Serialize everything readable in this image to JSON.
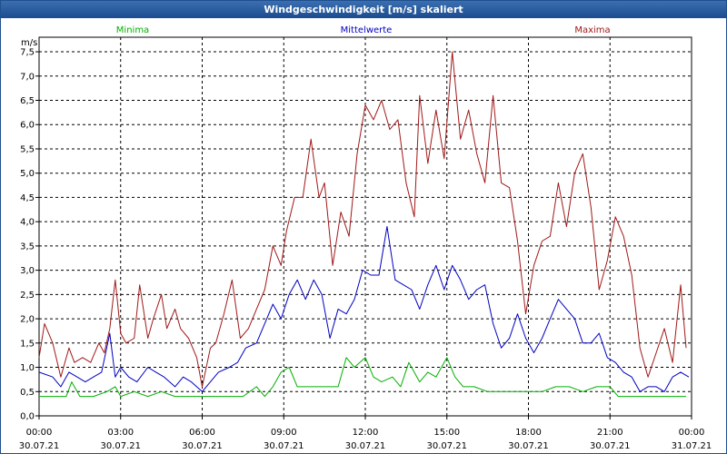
{
  "chart_data": {
    "type": "line",
    "title": "Windgeschwindigkeit [m/s] skaliert",
    "ylabel": "m/s",
    "ylim": [
      0,
      7.8
    ],
    "yticks": [
      "0,0",
      "0,5",
      "1,0",
      "1,5",
      "2,0",
      "2,5",
      "3,0",
      "3,5",
      "4,0",
      "4,5",
      "5,0",
      "5,5",
      "6,0",
      "6,5",
      "7,0",
      "7,5"
    ],
    "xlim": [
      0,
      24
    ],
    "xticks": [
      {
        "time": "00:00",
        "date": "30.07.21"
      },
      {
        "time": "03:00",
        "date": "30.07.21"
      },
      {
        "time": "06:00",
        "date": "30.07.21"
      },
      {
        "time": "09:00",
        "date": "30.07.21"
      },
      {
        "time": "12:00",
        "date": "30.07.21"
      },
      {
        "time": "15:00",
        "date": "30.07.21"
      },
      {
        "time": "18:00",
        "date": "30.07.21"
      },
      {
        "time": "21:00",
        "date": "30.07.21"
      },
      {
        "time": "00:00",
        "date": "31.07.21"
      }
    ],
    "colors": {
      "minima": "#00b000",
      "mittel": "#0000c0",
      "maxima": "#a01818",
      "grid": "#000000",
      "axis": "#000000"
    },
    "series": [
      {
        "name": "Minima",
        "key": "minima",
        "x": [
          0,
          0.5,
          1,
          1.2,
          1.5,
          2,
          2.5,
          2.8,
          3,
          3.5,
          4,
          4.5,
          5,
          5.5,
          6,
          6.5,
          7,
          7.5,
          8,
          8.3,
          8.6,
          8.9,
          9.2,
          9.5,
          10,
          10.5,
          11,
          11.3,
          11.6,
          12,
          12.3,
          12.6,
          13,
          13.3,
          13.6,
          14,
          14.3,
          14.6,
          15,
          15.3,
          15.6,
          16,
          16.5,
          17,
          17.5,
          18,
          18.5,
          19,
          19.5,
          20,
          20.5,
          21,
          21.3,
          21.6,
          22,
          22.5,
          23,
          23.5,
          23.8
        ],
        "y": [
          0.4,
          0.4,
          0.4,
          0.7,
          0.4,
          0.4,
          0.5,
          0.6,
          0.4,
          0.5,
          0.4,
          0.5,
          0.4,
          0.4,
          0.4,
          0.4,
          0.4,
          0.4,
          0.6,
          0.4,
          0.6,
          0.9,
          1.0,
          0.6,
          0.6,
          0.6,
          0.6,
          1.2,
          1.0,
          1.2,
          0.8,
          0.7,
          0.8,
          0.6,
          1.1,
          0.7,
          0.9,
          0.8,
          1.2,
          0.8,
          0.6,
          0.6,
          0.5,
          0.5,
          0.5,
          0.5,
          0.5,
          0.6,
          0.6,
          0.5,
          0.6,
          0.6,
          0.4,
          0.4,
          0.4,
          0.4,
          0.4,
          0.4,
          0.4
        ]
      },
      {
        "name": "Mittelwerte",
        "key": "mittel",
        "x": [
          0,
          0.5,
          0.8,
          1.1,
          1.4,
          1.7,
          2,
          2.3,
          2.6,
          2.8,
          3,
          3.3,
          3.6,
          4,
          4.3,
          4.6,
          5,
          5.3,
          5.6,
          6,
          6.3,
          6.6,
          7,
          7.3,
          7.6,
          8,
          8.3,
          8.6,
          8.9,
          9.2,
          9.5,
          9.8,
          10.1,
          10.4,
          10.7,
          11,
          11.3,
          11.6,
          11.9,
          12.2,
          12.5,
          12.8,
          13.1,
          13.4,
          13.7,
          14,
          14.3,
          14.6,
          14.9,
          15.2,
          15.5,
          15.8,
          16.1,
          16.4,
          16.7,
          17,
          17.3,
          17.6,
          17.9,
          18.2,
          18.5,
          18.8,
          19.1,
          19.4,
          19.7,
          20,
          20.3,
          20.6,
          20.9,
          21.2,
          21.5,
          21.8,
          22.1,
          22.4,
          22.7,
          23,
          23.3,
          23.6,
          23.9
        ],
        "y": [
          0.9,
          0.8,
          0.6,
          0.9,
          0.8,
          0.7,
          0.8,
          0.9,
          1.7,
          0.8,
          1.0,
          0.8,
          0.7,
          1.0,
          0.9,
          0.8,
          0.6,
          0.8,
          0.7,
          0.5,
          0.7,
          0.9,
          1.0,
          1.1,
          1.4,
          1.5,
          1.9,
          2.3,
          2.0,
          2.5,
          2.8,
          2.4,
          2.8,
          2.5,
          1.6,
          2.2,
          2.1,
          2.4,
          3.0,
          2.9,
          2.9,
          3.9,
          2.8,
          2.7,
          2.6,
          2.2,
          2.7,
          3.1,
          2.6,
          3.1,
          2.8,
          2.4,
          2.6,
          2.7,
          1.9,
          1.4,
          1.6,
          2.1,
          1.6,
          1.3,
          1.6,
          2.0,
          2.4,
          2.2,
          2.0,
          1.5,
          1.5,
          1.7,
          1.2,
          1.1,
          0.9,
          0.8,
          0.5,
          0.6,
          0.6,
          0.5,
          0.8,
          0.9,
          0.8
        ]
      },
      {
        "name": "Maxima",
        "key": "maxima",
        "x": [
          0,
          0.2,
          0.5,
          0.8,
          1.1,
          1.3,
          1.6,
          1.9,
          2.2,
          2.4,
          2.6,
          2.8,
          3.0,
          3.2,
          3.5,
          3.7,
          4,
          4.2,
          4.5,
          4.7,
          5,
          5.2,
          5.5,
          5.8,
          6,
          6.3,
          6.5,
          6.8,
          7.1,
          7.4,
          7.7,
          8,
          8.3,
          8.6,
          8.9,
          9.1,
          9.4,
          9.7,
          10,
          10.3,
          10.5,
          10.8,
          11.1,
          11.4,
          11.7,
          12,
          12.3,
          12.6,
          12.9,
          13.2,
          13.5,
          13.8,
          14,
          14.3,
          14.6,
          14.9,
          15.2,
          15.5,
          15.8,
          16.1,
          16.4,
          16.7,
          17,
          17.3,
          17.6,
          17.9,
          18.2,
          18.5,
          18.8,
          19.1,
          19.4,
          19.7,
          20,
          20.3,
          20.6,
          20.9,
          21.2,
          21.5,
          21.8,
          22.1,
          22.4,
          22.7,
          23,
          23.3,
          23.6,
          23.8
        ],
        "y": [
          1.2,
          1.9,
          1.5,
          0.8,
          1.4,
          1.1,
          1.2,
          1.1,
          1.5,
          1.3,
          1.8,
          2.8,
          1.7,
          1.5,
          1.6,
          2.7,
          1.6,
          2.0,
          2.5,
          1.8,
          2.2,
          1.8,
          1.6,
          1.2,
          0.6,
          1.4,
          1.5,
          2.1,
          2.8,
          1.6,
          1.8,
          2.2,
          2.6,
          3.5,
          3.1,
          3.8,
          4.5,
          4.5,
          5.7,
          4.5,
          4.8,
          3.1,
          4.2,
          3.7,
          5.4,
          6.4,
          6.1,
          6.5,
          5.9,
          6.1,
          4.8,
          4.1,
          6.6,
          5.2,
          6.3,
          5.3,
          7.5,
          5.7,
          6.3,
          5.4,
          4.8,
          6.6,
          4.8,
          4.7,
          3.6,
          2.1,
          3.1,
          3.6,
          3.7,
          4.8,
          3.9,
          5.0,
          5.4,
          4.3,
          2.6,
          3.2,
          4.1,
          3.7,
          2.9,
          1.4,
          0.8,
          1.3,
          1.8,
          1.1,
          2.7,
          1.4
        ]
      }
    ]
  }
}
